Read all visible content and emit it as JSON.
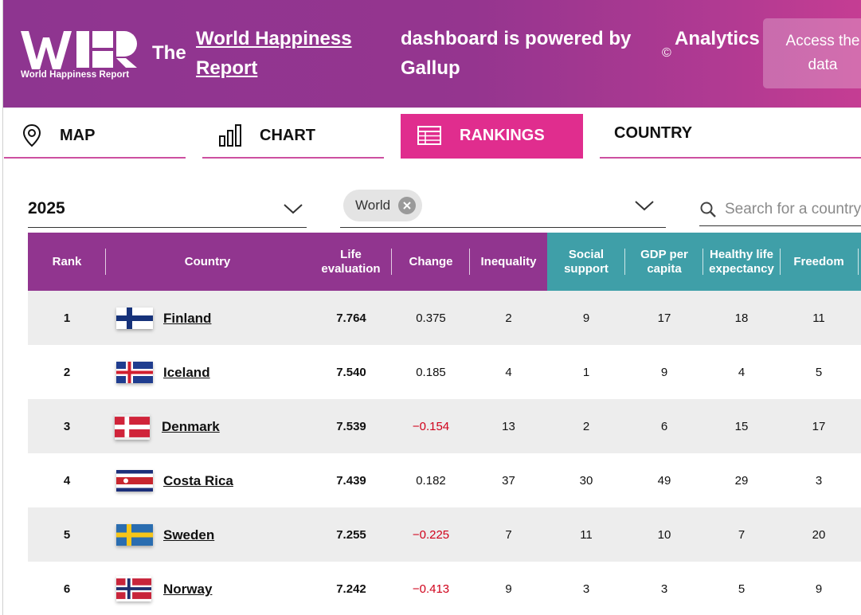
{
  "header": {
    "logo_caption": "World Happiness Report",
    "the": "The",
    "report_link": "World Happiness Report",
    "powered": "dashboard is powered by Gallup",
    "copyright": "©",
    "analytics": "Analytics",
    "access_button": "Access the data",
    "colors": {
      "purple": "#91358f",
      "pink": "#e02d8e",
      "teal": "#3f9fa8"
    }
  },
  "nav": {
    "tabs": [
      {
        "label": "MAP",
        "icon": "map-pin-icon"
      },
      {
        "label": "CHART",
        "icon": "bar-chart-icon"
      },
      {
        "label": "RANKINGS",
        "icon": "table-icon",
        "active": true
      },
      {
        "label": "COUNTRY"
      }
    ]
  },
  "filters": {
    "year": "2025",
    "region_chip": "World",
    "search_placeholder": "Search for a country"
  },
  "table": {
    "headers": {
      "rank": "Rank",
      "country": "Country",
      "life": "Life evaluation",
      "change": "Change",
      "inequality": "Inequality",
      "social": "Social support",
      "gdp": "GDP per capita",
      "health": "Healthy life expectancy",
      "freedom": "Freedom"
    },
    "rows": [
      {
        "rank": "1",
        "country": "Finland",
        "life": "7.764",
        "change": "0.375",
        "inequality": "2",
        "social": "9",
        "gdp": "17",
        "health": "18",
        "freedom": "11"
      },
      {
        "rank": "2",
        "country": "Iceland",
        "life": "7.540",
        "change": "0.185",
        "inequality": "4",
        "social": "1",
        "gdp": "9",
        "health": "4",
        "freedom": "5"
      },
      {
        "rank": "3",
        "country": "Denmark",
        "life": "7.539",
        "change": "−0.154",
        "inequality": "13",
        "social": "2",
        "gdp": "6",
        "health": "15",
        "freedom": "17"
      },
      {
        "rank": "4",
        "country": "Costa Rica",
        "life": "7.439",
        "change": "0.182",
        "inequality": "37",
        "social": "30",
        "gdp": "49",
        "health": "29",
        "freedom": "3"
      },
      {
        "rank": "5",
        "country": "Sweden",
        "life": "7.255",
        "change": "−0.225",
        "inequality": "7",
        "social": "11",
        "gdp": "10",
        "health": "7",
        "freedom": "20"
      },
      {
        "rank": "6",
        "country": "Norway",
        "life": "7.242",
        "change": "−0.413",
        "inequality": "9",
        "social": "3",
        "gdp": "3",
        "health": "5",
        "freedom": "9"
      }
    ]
  }
}
